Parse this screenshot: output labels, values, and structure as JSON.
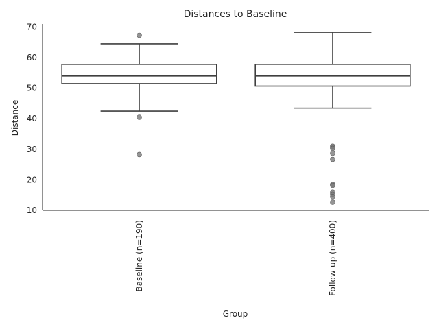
{
  "chart_data": {
    "type": "box",
    "title": "Distances to Baseline",
    "xlabel": "Group",
    "ylabel": "Distance",
    "ylim": [
      10,
      71
    ],
    "yticks": [
      10,
      20,
      30,
      40,
      50,
      60,
      70
    ],
    "categories": [
      "Baseline (n=190)",
      "Follow-up (n=400)"
    ],
    "boxes": [
      {
        "whisker_low": 42.5,
        "q1": 51.5,
        "median": 54.0,
        "q3": 57.8,
        "whisker_high": 64.5,
        "outliers": [
          67.3,
          40.5,
          28.3
        ]
      },
      {
        "whisker_low": 43.5,
        "q1": 50.7,
        "median": 54.0,
        "q3": 57.8,
        "whisker_high": 68.3,
        "outliers": [
          31.0,
          30.7,
          30.3,
          28.7,
          26.7,
          18.5,
          18.2,
          16.0,
          15.3,
          14.5,
          12.7
        ]
      }
    ],
    "grid": false,
    "legend": "none"
  }
}
